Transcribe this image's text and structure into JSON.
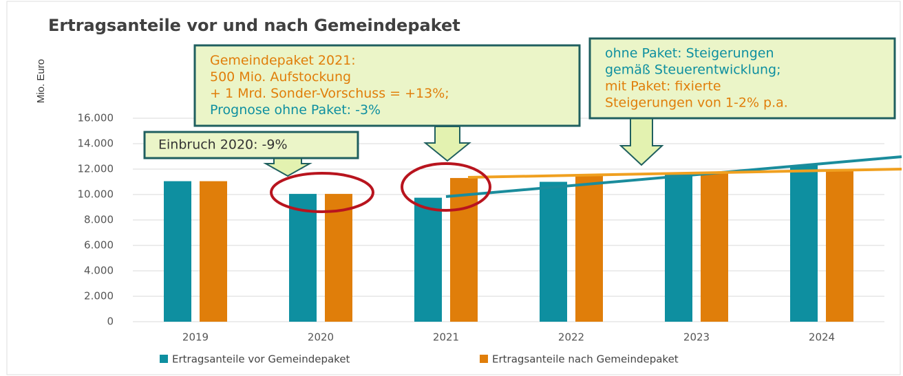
{
  "chart_data": {
    "type": "bar",
    "title": "Ertragsanteile vor und nach Gemeindepaket",
    "y_label": "Mio. Euro",
    "categories": [
      "2019",
      "2020",
      "2021",
      "2022",
      "2023",
      "2024"
    ],
    "series": [
      {
        "name": "Ertragsanteile vor Gemeindepaket",
        "color": "#0e8fa0",
        "values": [
          11050,
          10050,
          9750,
          11000,
          11700,
          12300
        ]
      },
      {
        "name": "Ertragsanteile nach Gemeindepaket",
        "color": "#e07e0a",
        "values": [
          11050,
          10050,
          11300,
          11500,
          11700,
          11900
        ]
      }
    ],
    "ylim": [
      0,
      16000
    ],
    "yticks": [
      0,
      {
        "value": 2000,
        "label": "2.000"
      },
      {
        "value": 4000,
        "label": "4.000"
      },
      {
        "value": 6000,
        "label": "6.000"
      },
      {
        "value": 8000,
        "label": "8.000"
      },
      {
        "value": 10000,
        "label": "10.000"
      },
      {
        "value": 12000,
        "label": "12.000"
      },
      {
        "value": 14000,
        "label": "14.000"
      },
      {
        "value": 16000,
        "label": "16.000"
      }
    ],
    "grid": true,
    "annotations": [
      {
        "lines": [
          {
            "text": "Einbruch 2020: -9%",
            "color": "#333333"
          }
        ]
      },
      {
        "lines": [
          {
            "text": "Gemeindepaket 2021:",
            "color": "#e07e0a"
          },
          {
            "text": "500 Mio. Aufstockung",
            "color": "#e07e0a"
          },
          {
            "text": "+ 1 Mrd. Sonder-Vorschuss = +13%;",
            "color": "#e07e0a"
          },
          {
            "text": "Prognose ohne Paket:  -3%",
            "color": "#0e8fa0"
          }
        ]
      },
      {
        "lines": [
          {
            "text": "ohne Paket: Steigerungen",
            "color": "#0e8fa0"
          },
          {
            "text": "gemäß Steuerentwicklung;",
            "color": "#0e8fa0"
          },
          {
            "text": "mit Paket: fixierte",
            "color": "#e07e0a"
          },
          {
            "text": "Steigerungen von 1-2% p.a.",
            "color": "#e07e0a"
          }
        ]
      }
    ]
  }
}
